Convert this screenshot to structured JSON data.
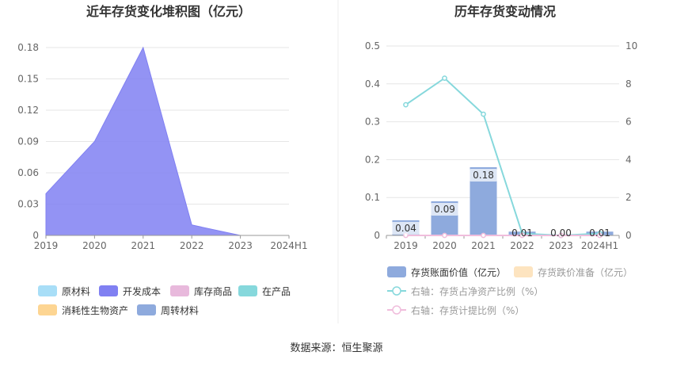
{
  "source": "数据来源：恒生聚源",
  "chart_data": [
    {
      "type": "area",
      "title": "近年存货变化堆积图（亿元）",
      "x": [
        "2019",
        "2020",
        "2021",
        "2022",
        "2023",
        "2024H1"
      ],
      "ylim": [
        0,
        0.18
      ],
      "yticks": [
        "0",
        "0.03",
        "0.06",
        "0.09",
        "0.12",
        "0.15",
        "0.18"
      ],
      "ytick_values": [
        0,
        0.03,
        0.06,
        0.09,
        0.12,
        0.15,
        0.18
      ],
      "grid": true,
      "legend_position": "bottom",
      "series": [
        {
          "name": "原材料",
          "values": [
            0,
            0,
            0,
            0,
            0,
            0
          ],
          "color": "#a8def7"
        },
        {
          "name": "开发成本",
          "values": [
            0.04,
            0.09,
            0.18,
            0.01,
            0.0,
            0.0
          ],
          "color": "#8080f2"
        },
        {
          "name": "库存商品",
          "values": [
            0,
            0,
            0,
            0,
            0,
            0
          ],
          "color": "#e8b9dc"
        },
        {
          "name": "在产品",
          "values": [
            0,
            0,
            0,
            0,
            0,
            0
          ],
          "color": "#86d8dc"
        },
        {
          "name": "消耗性生物资产",
          "values": [
            0,
            0,
            0,
            0,
            0,
            0
          ],
          "color": "#fdd592"
        },
        {
          "name": "周转材料",
          "values": [
            0,
            0,
            0,
            0,
            0,
            0
          ],
          "color": "#8eaadd"
        }
      ]
    },
    {
      "type": "bar",
      "title": "历年存货变动情况",
      "categories": [
        "2019",
        "2020",
        "2021",
        "2022",
        "2023",
        "2024H1"
      ],
      "ylim_left": [
        0,
        0.5
      ],
      "yticks_left": [
        "0",
        "0.1",
        "0.2",
        "0.3",
        "0.4",
        "0.5"
      ],
      "ytick_values_left": [
        0,
        0.1,
        0.2,
        0.3,
        0.4,
        0.5
      ],
      "ylim_right": [
        0,
        10
      ],
      "yticks_right": [
        "0",
        "2",
        "4",
        "6",
        "8",
        "10"
      ],
      "ytick_values_right": [
        0,
        2,
        4,
        6,
        8,
        10
      ],
      "grid": true,
      "legend_position": "bottom",
      "bars": {
        "name": "存货账面价值（亿元）",
        "values": [
          0.04,
          0.09,
          0.18,
          0.01,
          0.0,
          0.01
        ],
        "labels": [
          "0.04",
          "0.09",
          "0.18",
          "0.01",
          "0.00",
          "0.01"
        ],
        "color": "#8eaadd"
      },
      "impairment": {
        "name": "存货跌价准备（亿元）",
        "values": [
          0,
          0,
          0,
          0,
          0,
          0
        ],
        "color": "#fde4c0"
      },
      "lines": [
        {
          "name": "右轴：存货占净资产比例（%）",
          "values": [
            6.9,
            8.3,
            6.4,
            0.1,
            0.0,
            0.1
          ],
          "color": "#86d8dc"
        },
        {
          "name": "右轴：存货计提比例（%）",
          "values": [
            0,
            0,
            0,
            0,
            0,
            0
          ],
          "color": "#f0bddc"
        }
      ]
    }
  ]
}
